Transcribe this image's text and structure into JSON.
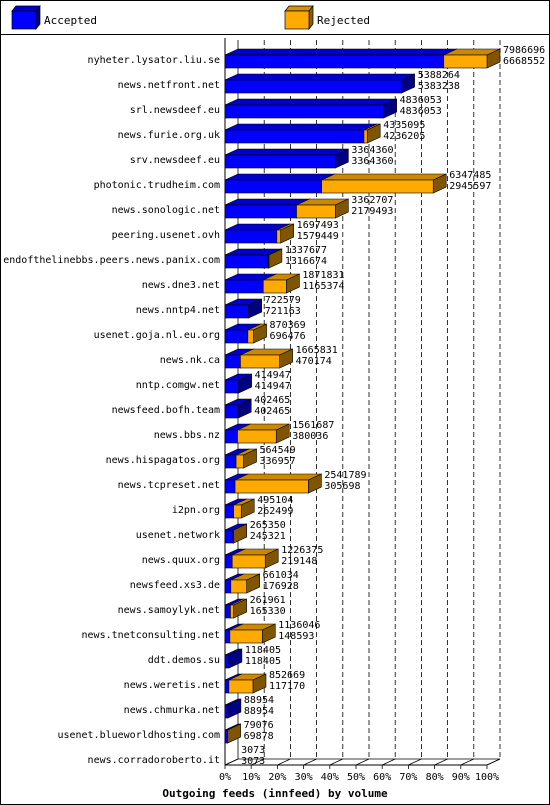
{
  "chart_data": {
    "type": "bar",
    "orientation": "horizontal",
    "stacked": true,
    "style": "3d",
    "xlabel": "Outgoing feeds (innfeed) by volume",
    "xticks": [
      "0%",
      "10%",
      "20%",
      "30%",
      "40%",
      "50%",
      "60%",
      "70%",
      "80%",
      "90%",
      "100%"
    ],
    "max_value": 7986696,
    "grid": "vertical dashed",
    "legend_position": "top",
    "legend": [
      {
        "name": "Accepted",
        "color": "#0000ff"
      },
      {
        "name": "Rejected",
        "color": "#ffaa00"
      }
    ],
    "categories": [
      "nyheter.lysator.liu.se",
      "news.netfront.net",
      "srl.newsdeef.eu",
      "news.furie.org.uk",
      "srv.newsdeef.eu",
      "photonic.trudheim.com",
      "news.sonologic.net",
      "peering.usenet.ovh",
      "endofthelinebbs.peers.news.panix.com",
      "news.dne3.net",
      "news.nntp4.net",
      "usenet.goja.nl.eu.org",
      "news.nk.ca",
      "nntp.comgw.net",
      "newsfeed.bofh.team",
      "news.bbs.nz",
      "news.hispagatos.org",
      "news.tcpreset.net",
      "i2pn.org",
      "usenet.network",
      "news.quux.org",
      "newsfeed.xs3.de",
      "news.samoylyk.net",
      "news.tnetconsulting.net",
      "ddt.demos.su",
      "news.weretis.net",
      "news.chmurka.net",
      "usenet.blueworldhosting.com",
      "news.corradoroberto.it"
    ],
    "series": [
      {
        "name": "Accepted",
        "color": "#0000ff",
        "values": [
          6668552,
          5383238,
          4836053,
          4236205,
          3364360,
          2945597,
          2179493,
          1579449,
          1316674,
          1165374,
          721163,
          696476,
          470174,
          414947,
          402465,
          380036,
          336957,
          305698,
          262499,
          245321,
          219148,
          176928,
          165330,
          148593,
          118405,
          117170,
          88954,
          69878,
          3073
        ]
      },
      {
        "name": "Rejected",
        "color": "#ffaa00",
        "values": [
          1318144,
          5026,
          0,
          98890,
          0,
          3401888,
          1183214,
          118044,
          21003,
          706457,
          1416,
          173893,
          1195657,
          0,
          0,
          1181651,
          227592,
          2236091,
          232605,
          20029,
          1007227,
          484106,
          96631,
          987453,
          0,
          735499,
          0,
          9198,
          0
        ]
      }
    ],
    "data_labels": [
      [
        "7986696",
        "6668552"
      ],
      [
        "5388264",
        "5383238"
      ],
      [
        "4836053",
        "4836053"
      ],
      [
        "4335095",
        "4236205"
      ],
      [
        "3364360",
        "3364360"
      ],
      [
        "6347485",
        "2945597"
      ],
      [
        "3362707",
        "2179493"
      ],
      [
        "1697493",
        "1579449"
      ],
      [
        "1337677",
        "1316674"
      ],
      [
        "1871831",
        "1165374"
      ],
      [
        "722579",
        "721163"
      ],
      [
        "870369",
        "696476"
      ],
      [
        "1665831",
        "470174"
      ],
      [
        "414947",
        "414947"
      ],
      [
        "402465",
        "402465"
      ],
      [
        "1561687",
        "380036"
      ],
      [
        "564549",
        "336957"
      ],
      [
        "2541789",
        "305698"
      ],
      [
        "495104",
        "262499"
      ],
      [
        "265350",
        "245321"
      ],
      [
        "1226375",
        "219148"
      ],
      [
        "661034",
        "176928"
      ],
      [
        "261961",
        "165330"
      ],
      [
        "1136046",
        "148593"
      ],
      [
        "118405",
        "118405"
      ],
      [
        "852669",
        "117170"
      ],
      [
        "88954",
        "88954"
      ],
      [
        "79076",
        "69878"
      ],
      [
        "3073",
        "3073"
      ]
    ]
  }
}
